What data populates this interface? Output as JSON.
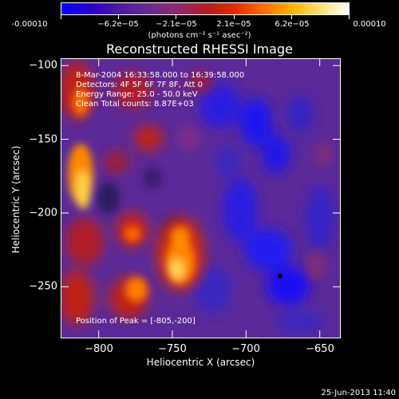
{
  "colorbar": {
    "tick_labels": [
      "-0.00010",
      "−6.2e−05",
      "−2.1e−05",
      "2.1e−05",
      "6.2e−05",
      "0.00010"
    ],
    "units": "(photons cm⁻² s⁻¹ asec⁻²)",
    "colors": [
      "#0000ff",
      "#2a00d0",
      "#4a1aa0",
      "#6a2a90",
      "#8a2a70",
      "#b01e28",
      "#e02800",
      "#ff6a00",
      "#ffb000",
      "#ffe070",
      "#ffffff"
    ]
  },
  "title": "Reconstructed RHESSI Image",
  "info": {
    "line1": "8-Mar-2004 16:33:58.000 to 16:39:58.000",
    "line2": "Detectors: 4F 5F 6F 7F 8F, Att 0",
    "line3": "Energy Range: 25.0 - 50.0 keV",
    "line4": "Clean     Total counts: 8.87E+03"
  },
  "peak_label": "Position of Peak = [-805,-200]",
  "axes": {
    "xlabel": "Heliocentric X (arcsec)",
    "ylabel": "Heliocentric Y (arcsec)",
    "x_ticks": [
      "−800",
      "−750",
      "−700",
      "−650"
    ],
    "y_ticks": [
      "−100",
      "−150",
      "−200",
      "−250"
    ],
    "xlim": [
      -825,
      -635
    ],
    "ylim": [
      -285,
      -95
    ]
  },
  "timestamp": "25-Jun-2013 11:40"
}
